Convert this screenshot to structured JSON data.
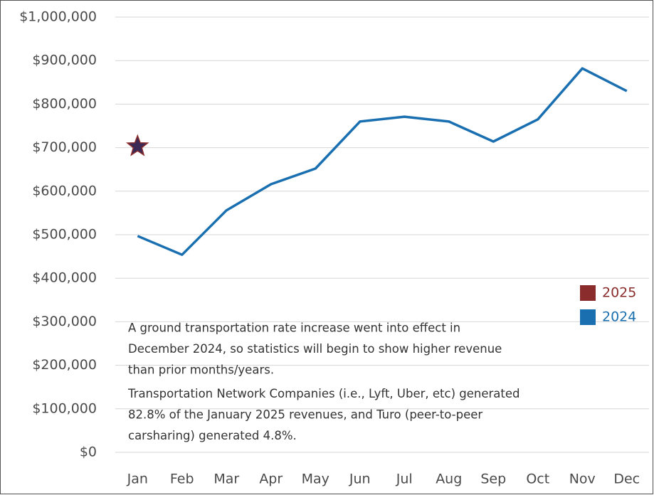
{
  "chart_data": {
    "type": "line",
    "categories": [
      "Jan",
      "Feb",
      "Mar",
      "Apr",
      "May",
      "Jun",
      "Jul",
      "Aug",
      "Sep",
      "Oct",
      "Nov",
      "Dec"
    ],
    "series": [
      {
        "name": "2025",
        "color": "#8b2c2c",
        "marker": "star",
        "values": [
          703000,
          null,
          null,
          null,
          null,
          null,
          null,
          null,
          null,
          null,
          null,
          null
        ]
      },
      {
        "name": "2024",
        "color": "#1a6fb0",
        "values": [
          497000,
          454000,
          556000,
          616000,
          652000,
          760000,
          771000,
          760000,
          714000,
          765000,
          882000,
          830000
        ]
      }
    ],
    "ylim": [
      0,
      1000000
    ],
    "yticks": [
      {
        "value": 0,
        "label": "$0"
      },
      {
        "value": 100000,
        "label": "$100,000"
      },
      {
        "value": 200000,
        "label": "$200,000"
      },
      {
        "value": 300000,
        "label": "$300,000"
      },
      {
        "value": 400000,
        "label": "$400,000"
      },
      {
        "value": 500000,
        "label": "$500,000"
      },
      {
        "value": 600000,
        "label": "$600,000"
      },
      {
        "value": 700000,
        "label": "$700,000"
      },
      {
        "value": 800000,
        "label": "$800,000"
      },
      {
        "value": 900000,
        "label": "$900,000"
      },
      {
        "value": 1000000,
        "label": "$1,000,000"
      }
    ],
    "grid": true,
    "legend": "right",
    "annotations": [
      [
        "A ground transportation rate increase went into effect in",
        "December 2024, so statistics will begin to show higher revenue",
        "than prior months/years."
      ],
      [
        "Transportation Network Companies (i.e., Lyft, Uber, etc) generated",
        "82.8% of the January 2025 revenues, and Turo (peer-to-peer",
        "carsharing) generated 4.8%."
      ]
    ]
  }
}
